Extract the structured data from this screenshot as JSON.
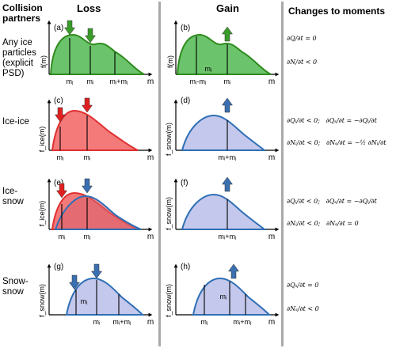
{
  "headers": {
    "partners": "Collision\npartners",
    "loss": "Loss",
    "gain": "Gain",
    "moments": "Changes to moments"
  },
  "rows": [
    {
      "label": "Any ice\nparticles\n(explicit\nPSD)",
      "loss": {
        "tag": "(a)",
        "ylabel": "f(m)",
        "xlabel": "m",
        "xticks": [
          "mⱼ",
          "mᵢ",
          "mᵢ+mⱼ"
        ]
      },
      "gain": {
        "tag": "(b)",
        "ylabel": "f(m)",
        "xlabel": "m",
        "xticks": [
          "mᵢ-mⱼ",
          "mᵢ"
        ],
        "inner": "mⱼ"
      },
      "moments": [
        "∂Q/∂t = 0",
        "∂N/∂t < 0"
      ]
    },
    {
      "label": "Ice-ice",
      "loss": {
        "tag": "(c)",
        "ylabel": "f_ice(m)",
        "xlabel": "m",
        "xticks": [
          "mⱼ",
          "mᵢ"
        ]
      },
      "gain": {
        "tag": "(d)",
        "ylabel": "f_snow(m)",
        "xlabel": "m",
        "xticks": [
          "mᵢ+mⱼ"
        ]
      },
      "moments": [
        "∂Qᵢ/∂t < 0;   ∂Qₛ/∂t = −∂Qᵢ/∂t",
        "∂Nᵢ/∂t < 0;   ∂Nₛ/∂t = −½ ∂Nᵢ/∂t"
      ]
    },
    {
      "label": "Ice-\nsnow",
      "loss": {
        "tag": "(e)",
        "ylabel": "f_ice(m)",
        "xlabel": "m",
        "xticks": [
          "mᵢ",
          "mⱼ"
        ]
      },
      "gain": {
        "tag": "(f)",
        "ylabel": "f_snow(m)",
        "xlabel": "m",
        "xticks": [
          "mᵢ+mⱼ"
        ]
      },
      "moments": [
        "∂Qᵢ/∂t < 0;   ∂Qₛ/∂t = −∂Qᵢ/∂t",
        "∂Nᵢ/∂t < 0;   ∂Nₛ/∂t = 0"
      ]
    },
    {
      "label": "Snow-\nsnow",
      "loss": {
        "tag": "(g)",
        "ylabel": "f_snow(m)",
        "xlabel": "m",
        "xticks": [
          "mⱼ",
          "mᵢ",
          "mᵢ+mⱼ"
        ]
      },
      "gain": {
        "tag": "(h)",
        "ylabel": "f_snow(m)",
        "xlabel": "m",
        "xticks": [
          "mⱼ",
          "mᵢ+mⱼ"
        ],
        "inner": "mᵢ"
      },
      "moments": [
        "∂Qₛ/∂t = 0",
        "∂Nₛ/∂t < 0"
      ]
    }
  ],
  "colors": {
    "green_line": "#2e8b1e",
    "green_fill": "#6bc46b",
    "red_line": "#e03030",
    "red_fill": "#f47a7a",
    "blue_line": "#2f6fb5",
    "blue_fill": "#c4c8ec",
    "dark_red_fill": "#d9606a",
    "arrow_green": "#3a9b2a",
    "arrow_red": "#e02020",
    "arrow_blue": "#3a6fb0",
    "separator": "#a9a9a9"
  }
}
